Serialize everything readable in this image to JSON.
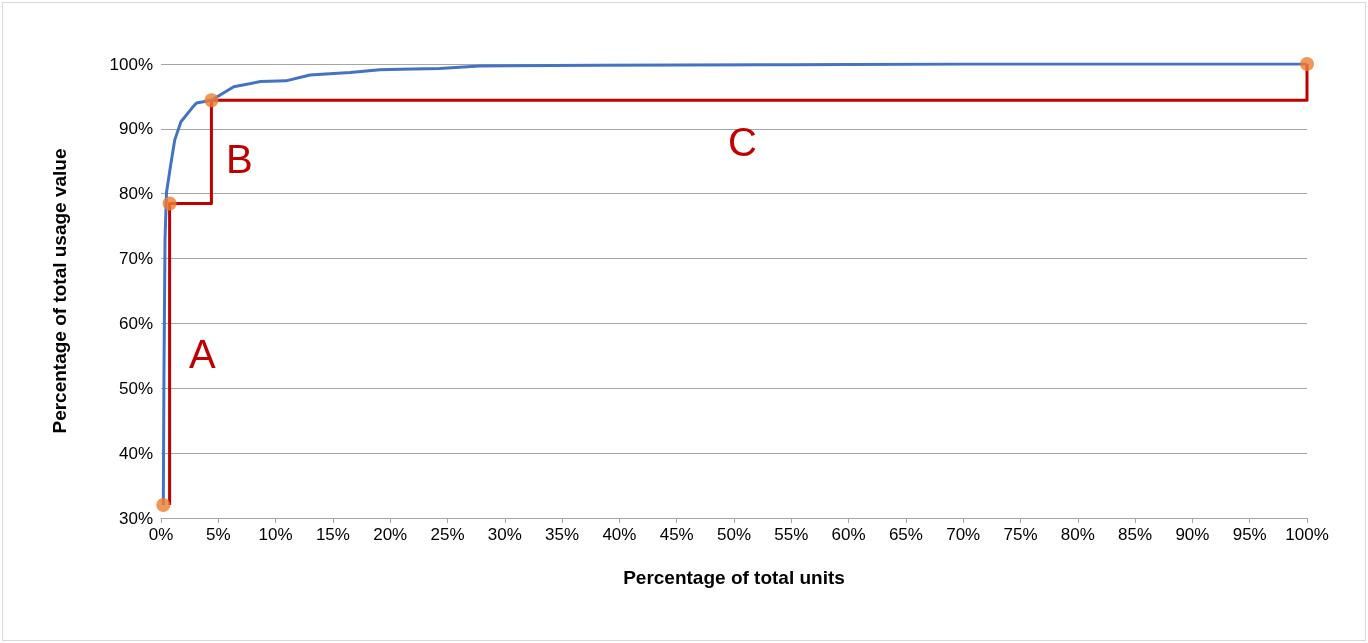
{
  "chart_data": {
    "type": "line",
    "xlabel": "Percentage of total units",
    "ylabel": "Percentage of total usage value",
    "series": [
      {
        "color": "#4472c4",
        "x": [
          0.2,
          0.26,
          0.35,
          0.48,
          0.78,
          1.2,
          1.74,
          2.7,
          3.1,
          4.4,
          6.35,
          8.7,
          10.9,
          13.0,
          16.5,
          19.1,
          20.9,
          24.3,
          27.8,
          38.3,
          55,
          70,
          100
        ],
        "values": [
          32,
          52.5,
          72.9,
          80.2,
          83.7,
          88.3,
          91.1,
          93.2,
          94.0,
          94.4,
          96.5,
          97.3,
          97.4,
          98.3,
          98.7,
          99.1,
          99.2,
          99.3,
          99.7,
          99.8,
          99.9,
          100,
          100
        ]
      },
      {
        "type": "step",
        "color": "#c00000",
        "x": [
          0.75,
          0.75,
          4.4,
          4.4,
          100,
          100
        ],
        "values": [
          32,
          78.5,
          78.5,
          94.4,
          94.4,
          100
        ]
      },
      {
        "type": "scatter",
        "marker": "circle",
        "color": "#ed7d31",
        "x": [
          0.2,
          0.75,
          4.4,
          100
        ],
        "values": [
          32,
          78.5,
          94.4,
          100
        ]
      }
    ],
    "annotations": [
      "A",
      "B",
      "C"
    ],
    "xlim": [
      0,
      100
    ],
    "ylim": [
      30,
      100
    ],
    "xticks": [
      {
        "value": 0,
        "label": "0%"
      },
      {
        "value": 5,
        "label": "5%"
      },
      {
        "value": 10,
        "label": "10%"
      },
      {
        "value": 15,
        "label": "15%"
      },
      {
        "value": 20,
        "label": "20%"
      },
      {
        "value": 25,
        "label": "25%"
      },
      {
        "value": 30,
        "label": "30%"
      },
      {
        "value": 35,
        "label": "35%"
      },
      {
        "value": 40,
        "label": "40%"
      },
      {
        "value": 45,
        "label": "45%"
      },
      {
        "value": 50,
        "label": "50%"
      },
      {
        "value": 55,
        "label": "55%"
      },
      {
        "value": 60,
        "label": "60%"
      },
      {
        "value": 65,
        "label": "65%"
      },
      {
        "value": 70,
        "label": "70%"
      },
      {
        "value": 75,
        "label": "75%"
      },
      {
        "value": 80,
        "label": "80%"
      },
      {
        "value": 85,
        "label": "85%"
      },
      {
        "value": 90,
        "label": "90%"
      },
      {
        "value": 95,
        "label": "95%"
      },
      {
        "value": 100,
        "label": "100%"
      }
    ],
    "yticks": [
      {
        "value": 30,
        "label": "30%"
      },
      {
        "value": 40,
        "label": "40%"
      },
      {
        "value": 50,
        "label": "50%"
      },
      {
        "value": 60,
        "label": "60%"
      },
      {
        "value": 70,
        "label": "70%"
      },
      {
        "value": 80,
        "label": "80%"
      },
      {
        "value": 90,
        "label": "90%"
      },
      {
        "value": 100,
        "label": "100%"
      }
    ],
    "grid": "y"
  }
}
